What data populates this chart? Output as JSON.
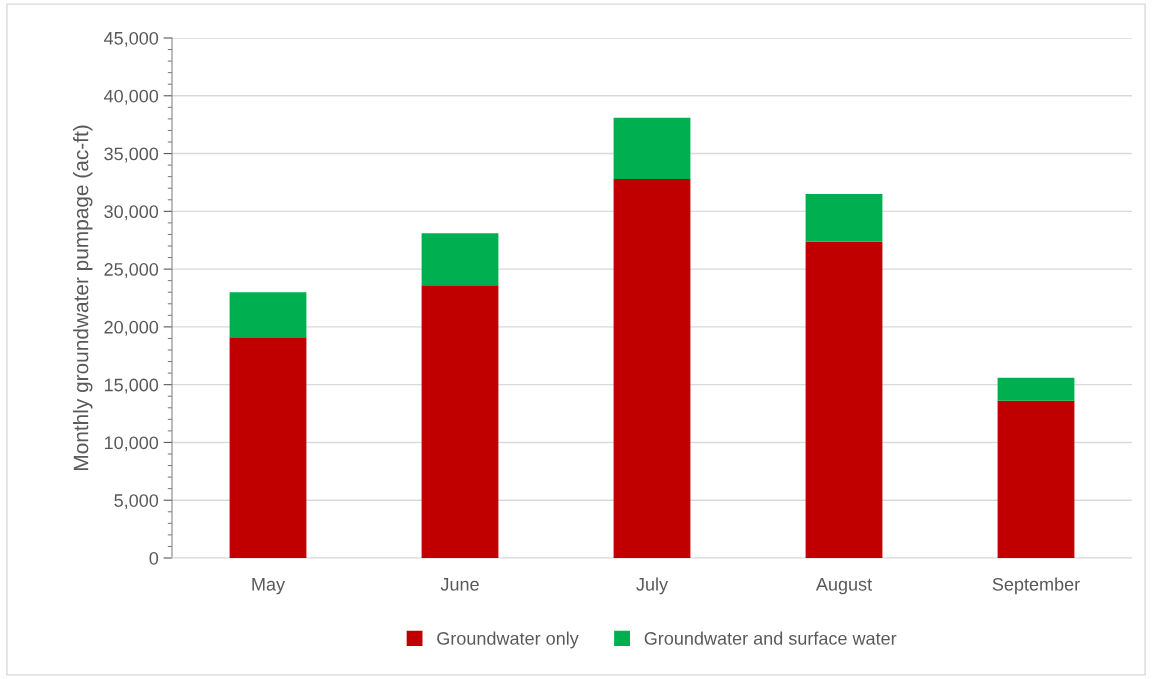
{
  "chart_data": {
    "type": "bar",
    "stacked": true,
    "ylabel": "Monthly groundwater pumpage (ac-ft)",
    "categories": [
      "May",
      "June",
      "July",
      "August",
      "September"
    ],
    "series": [
      {
        "name": "Groundwater only",
        "color": "#c00000",
        "values": [
          19100,
          23600,
          32800,
          27400,
          13600
        ]
      },
      {
        "name": "Groundwater and surface water",
        "color": "#00b050",
        "values": [
          3900,
          4500,
          5300,
          4100,
          2000
        ]
      }
    ],
    "ylim": [
      0,
      45000
    ],
    "yticks": [
      {
        "value": 0,
        "label": "0"
      },
      {
        "value": 5000,
        "label": "5,000"
      },
      {
        "value": 10000,
        "label": "10,000"
      },
      {
        "value": 15000,
        "label": "15,000"
      },
      {
        "value": 20000,
        "label": "20,000"
      },
      {
        "value": 25000,
        "label": "25,000"
      },
      {
        "value": 30000,
        "label": "30,000"
      },
      {
        "value": 35000,
        "label": "35,000"
      },
      {
        "value": 40000,
        "label": "40,000"
      },
      {
        "value": 45000,
        "label": "45,000"
      }
    ],
    "grid": "y",
    "legend": "bottom"
  }
}
